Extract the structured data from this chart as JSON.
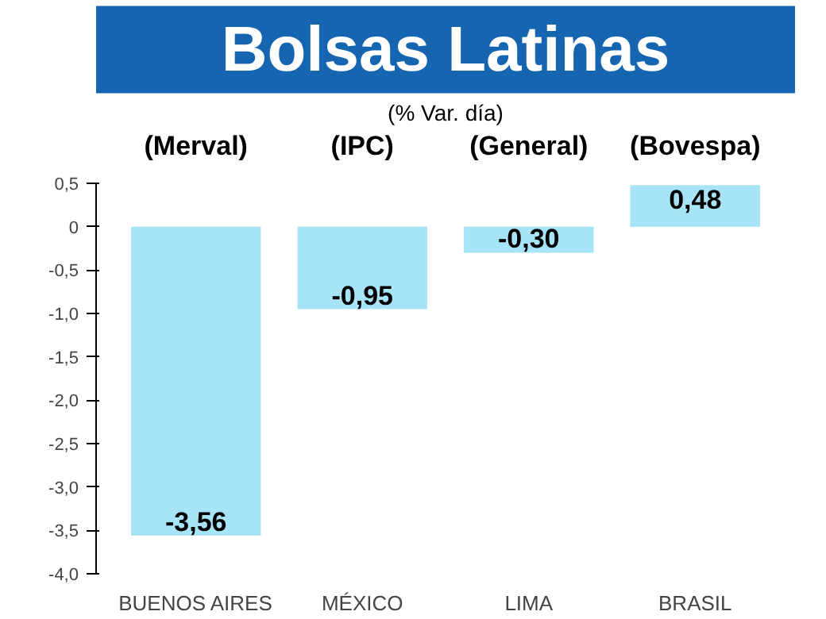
{
  "chart_data": {
    "type": "bar",
    "title": "Bolsas Latinas",
    "subtitle": "(% Var. día)",
    "categories": [
      "BUENOS AIRES",
      "MÉXICO",
      "LIMA",
      "BRASIL"
    ],
    "values": [
      -3.56,
      -0.95,
      -0.3,
      0.48
    ],
    "value_labels": [
      "-3,56",
      "-0,95",
      "-0,30",
      "0,48"
    ],
    "color": "#a8e4f7",
    "annotations": [
      "(Merval)",
      "(IPC)",
      "(General)",
      "(Bovespa)"
    ],
    "ylim": [
      -4.0,
      0.5
    ],
    "yticks": [
      {
        "value": 0.5,
        "label": "0,5"
      },
      0,
      {
        "value": -0.5,
        "label": "-0,5"
      },
      {
        "value": -1.0,
        "label": "-1,0"
      },
      {
        "value": -1.5,
        "label": "-1,5"
      },
      {
        "value": -2.0,
        "label": "-2,0"
      },
      {
        "value": -2.5,
        "label": "-2,5"
      },
      {
        "value": -3.0,
        "label": "-3,0"
      },
      {
        "value": -3.5,
        "label": "-3,5"
      },
      {
        "value": -4.0,
        "label": "-4,0"
      }
    ],
    "grid": false
  }
}
